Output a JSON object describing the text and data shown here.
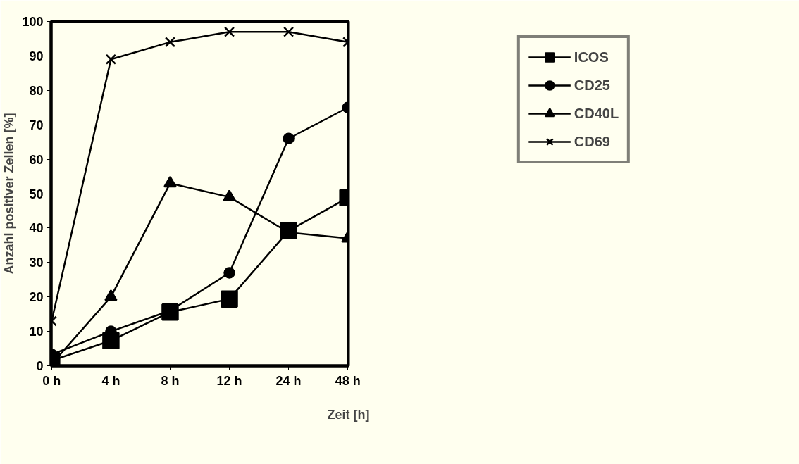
{
  "chart_data": {
    "type": "line",
    "xlabel": "Zeit [h]",
    "ylabel": "Anzahl positiver Zellen [%]",
    "categories": [
      "0 h",
      "4 h",
      "8 h",
      "12 h",
      "24 h",
      "48 h"
    ],
    "ylim": [
      0,
      100
    ],
    "yticks": [
      0,
      10,
      20,
      30,
      40,
      50,
      60,
      70,
      80,
      90,
      100
    ],
    "legend": "top right",
    "grid": false,
    "series": [
      {
        "name": "ICOS",
        "color": "#000000",
        "marker": "square",
        "values": [
          1.5,
          7.3,
          15.6,
          19.4,
          39.2,
          48.8
        ]
      },
      {
        "name": "CD25",
        "color": "#000000",
        "marker": "circle",
        "values": [
          3.3,
          10,
          16,
          27,
          66,
          75
        ]
      },
      {
        "name": "CD40L",
        "color": "#000000",
        "marker": "triangle",
        "values": [
          0.5,
          20,
          53,
          49,
          38.7,
          37
        ]
      },
      {
        "name": "CD69",
        "color": "#000000",
        "marker": "cross",
        "values": [
          13,
          89,
          94,
          97,
          97,
          94
        ]
      }
    ]
  }
}
